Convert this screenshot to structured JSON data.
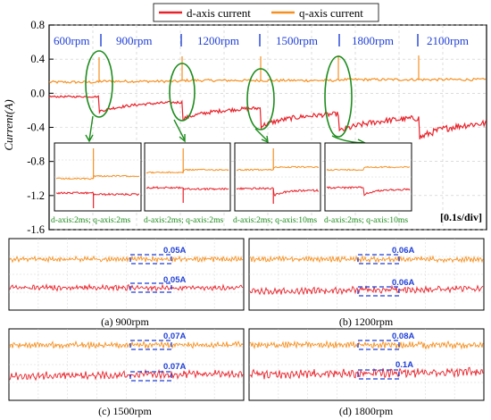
{
  "colors": {
    "d_axis": "#e8222a",
    "q_axis": "#f59020",
    "speed_text": "#1f3fd6",
    "zoom_note": "#1a8a1a",
    "ellipse": "#1e8c1e",
    "box": "#1f3fd6",
    "value_text": "#1f3fd6"
  },
  "chart_data": [
    {
      "type": "line",
      "ylabel": "Current(A)",
      "ylim": [
        -1.6,
        0.8
      ],
      "yticks": [
        "0.8",
        "0.4",
        "0.0",
        "-0.4",
        "-0.8",
        "-1.2",
        "-1.6"
      ],
      "legend": {
        "placement": "top-center",
        "entries": [
          "d-axis current",
          "q-axis current"
        ]
      },
      "time_scale": "[0.1s/div]",
      "segments": [
        "600rpm",
        "900rpm",
        "1200rpm",
        "1500rpm",
        "1800rpm",
        "2100rpm"
      ],
      "series": [
        {
          "name": "d-axis current",
          "values": [
            -0.04,
            -0.11,
            -0.18,
            -0.25,
            -0.3,
            -0.36
          ]
        },
        {
          "name": "q-axis current",
          "values": [
            0.13,
            0.14,
            0.15,
            0.15,
            0.16,
            0.16
          ]
        }
      ],
      "zoom_notes": [
        "d-axis:2ms; q-axis:2ms",
        "d-axis:2ms; q-axis:2ms",
        "d-axis:2ms; q-axis:10ms",
        "d-axis:2ms; q-axis:10ms"
      ]
    },
    {
      "type": "line",
      "panels": [
        {
          "caption": "(a) 900rpm",
          "q_ripple": "0.05A",
          "d_ripple": "0.05A"
        },
        {
          "caption": "(b) 1200rpm",
          "q_ripple": "0.06A",
          "d_ripple": "0.06A"
        },
        {
          "caption": "(c) 1500rpm",
          "q_ripple": "0.07A",
          "d_ripple": "0.07A"
        },
        {
          "caption": "(d) 1800rpm",
          "q_ripple": "0.08A",
          "d_ripple": "0.1A"
        }
      ]
    }
  ]
}
